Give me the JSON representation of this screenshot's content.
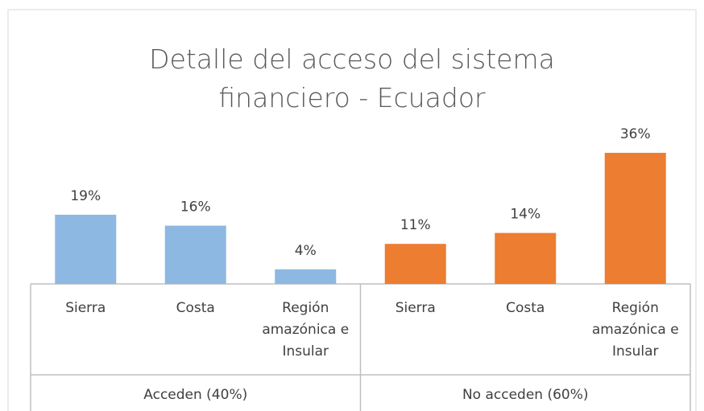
{
  "chart_data": {
    "type": "bar",
    "title": "Detalle del acceso del sistema financiero - Ecuador",
    "groups": [
      {
        "name": "Acceden (40%)",
        "color": "#8db8e2",
        "categories": [
          "Sierra",
          "Costa",
          "Región amazónica e Insular"
        ],
        "values": [
          19,
          16,
          4
        ],
        "value_labels": [
          "19%",
          "16%",
          "4%"
        ]
      },
      {
        "name": "No acceden (60%)",
        "color": "#ed7d31",
        "categories": [
          "Sierra",
          "Costa",
          "Región amazónica e Insular"
        ],
        "values": [
          11,
          14,
          36
        ],
        "value_labels": [
          "11%",
          "14%",
          "36%"
        ]
      }
    ]
  }
}
